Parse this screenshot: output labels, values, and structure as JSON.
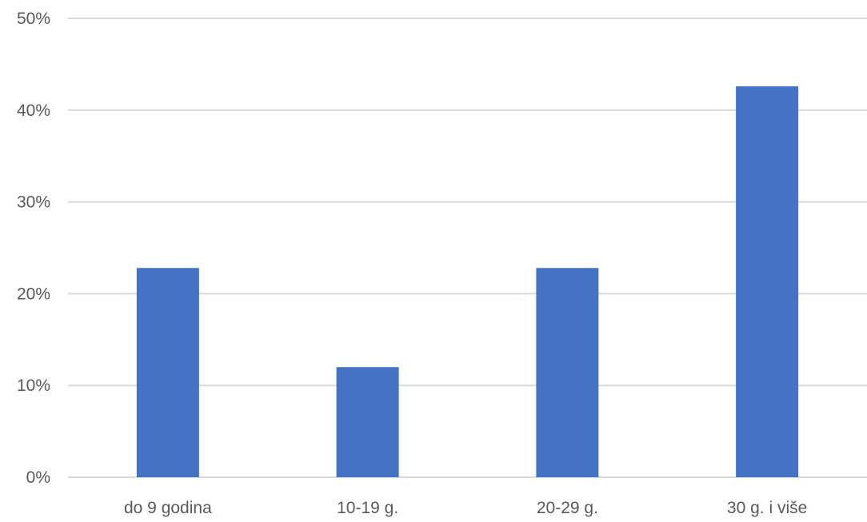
{
  "chart_data": {
    "type": "bar",
    "title": "",
    "xlabel": "",
    "ylabel": "",
    "categories": [
      "do 9 godina",
      "10-19 g.",
      "20-29 g.",
      "30 g. i više"
    ],
    "values": [
      22.8,
      12.0,
      22.8,
      42.6
    ],
    "ylim": [
      0,
      50
    ],
    "yticks": [
      0,
      10,
      20,
      30,
      40,
      50
    ],
    "ytick_labels": [
      "0%",
      "10%",
      "20%",
      "30%",
      "40%",
      "50%"
    ],
    "grid": true,
    "legend": "none",
    "bar_color": "#4472c4"
  }
}
